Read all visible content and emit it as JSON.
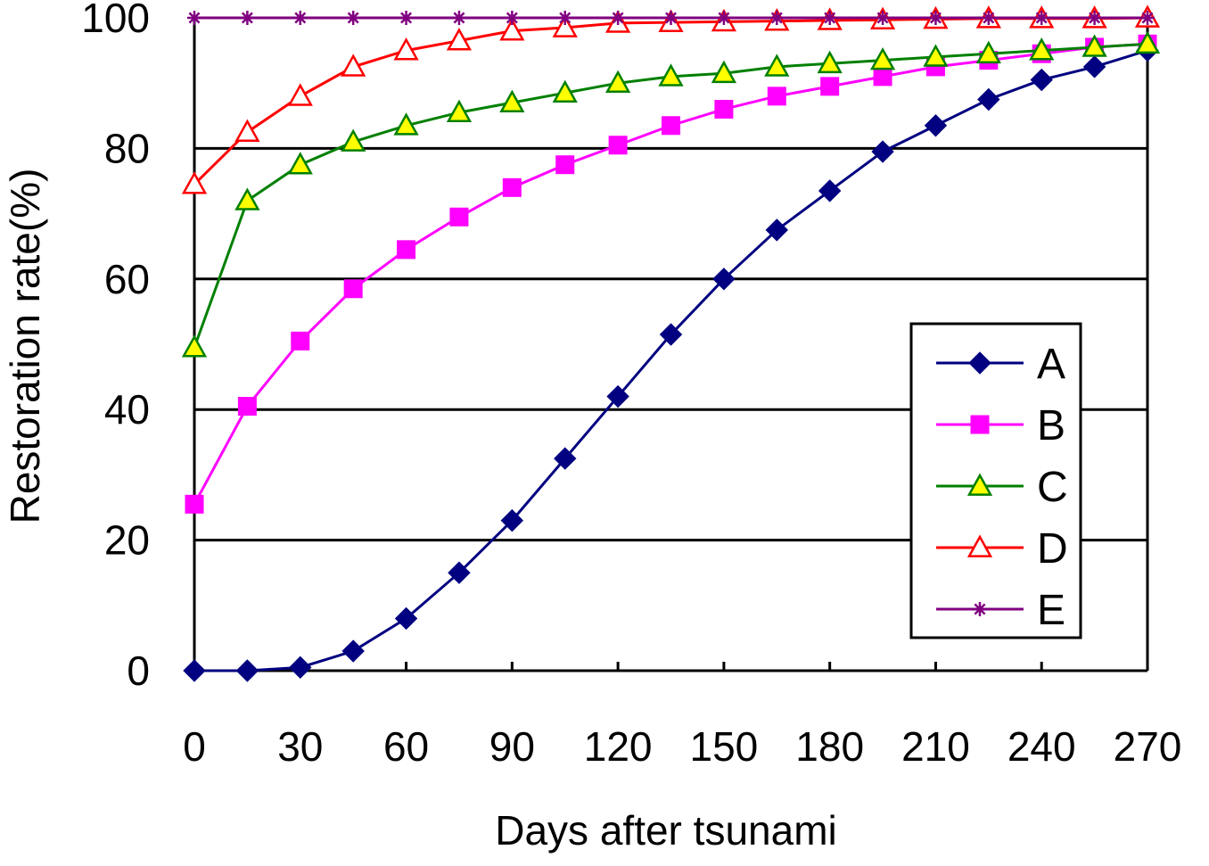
{
  "chart_data": {
    "type": "line",
    "title": "",
    "xlabel": "Days after tsunami",
    "ylabel": "Restoration rate(%)",
    "x": [
      0,
      15,
      30,
      45,
      60,
      75,
      90,
      105,
      120,
      135,
      150,
      165,
      180,
      195,
      210,
      225,
      240,
      255,
      270
    ],
    "xticks": [
      0,
      30,
      60,
      90,
      120,
      150,
      180,
      210,
      240,
      270
    ],
    "xtick_labels": [
      "0",
      "30",
      "60",
      "90",
      "120",
      "150",
      "180",
      "210",
      "240",
      "270"
    ],
    "yticks": [
      0,
      20,
      40,
      60,
      80,
      100
    ],
    "ytick_labels": [
      "0",
      "20",
      "40",
      "60",
      "80",
      "100"
    ],
    "xlim": [
      0,
      270
    ],
    "ylim": [
      0,
      100
    ],
    "grid": "horizontal",
    "legend_position": "right",
    "series": [
      {
        "name": "A",
        "color": "#000080",
        "marker": "diamond",
        "values": [
          0,
          0,
          0.5,
          3,
          8,
          15,
          23,
          32.5,
          42,
          51.5,
          60,
          67.5,
          73.5,
          79.5,
          83.5,
          87.5,
          90.5,
          92.5,
          95
        ]
      },
      {
        "name": "B",
        "color": "#ff00ff",
        "marker": "square",
        "values": [
          25.5,
          40.5,
          50.5,
          58.5,
          64.5,
          69.5,
          74,
          77.5,
          80.5,
          83.5,
          86,
          88,
          89.5,
          91,
          92.5,
          93.5,
          94.5,
          95.5,
          96
        ]
      },
      {
        "name": "C",
        "color": "#008000",
        "marker_fill": "#ffff00",
        "marker": "triangle",
        "values": [
          49.5,
          72,
          77.5,
          81,
          83.5,
          85.5,
          87,
          88.5,
          90,
          91,
          91.5,
          92.5,
          93,
          93.5,
          94,
          94.5,
          95,
          95.5,
          96
        ]
      },
      {
        "name": "D",
        "color": "#ff0000",
        "marker_fill": "#ffffff",
        "marker": "triangle",
        "values": [
          74.5,
          82.5,
          88,
          92.5,
          95,
          96.5,
          98,
          98.5,
          99.2,
          99.3,
          99.4,
          99.5,
          99.6,
          99.7,
          99.8,
          99.9,
          99.9,
          99.9,
          100
        ]
      },
      {
        "name": "E",
        "color": "#800080",
        "marker": "star",
        "values": [
          100,
          100,
          100,
          100,
          100,
          100,
          100,
          100,
          100,
          100,
          100,
          100,
          100,
          100,
          100,
          100,
          100,
          100,
          100
        ]
      }
    ]
  }
}
